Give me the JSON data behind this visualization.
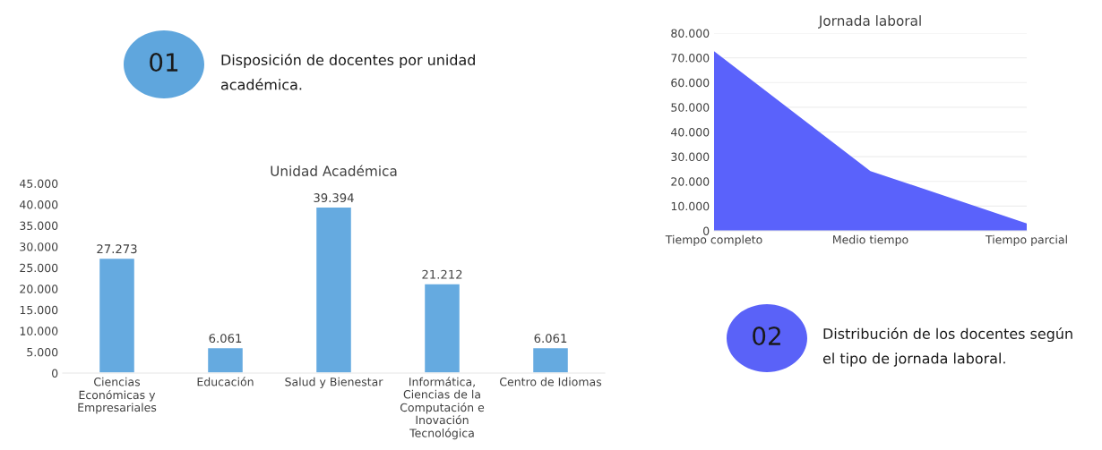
{
  "chart_data": [
    {
      "type": "bar",
      "title": "Unidad Académica",
      "categories": [
        "Ciencias Económicas y Empresariales",
        "Educación",
        "Salud y Bienestar",
        "Informática, Ciencias de la Computación e Inovación Tecnológica",
        "Centro de Idiomas"
      ],
      "values": [
        27273,
        6061,
        39394,
        21212,
        6061
      ],
      "value_labels": [
        "27.273",
        "6.061",
        "39.394",
        "21.212",
        "6.061"
      ],
      "color": "#65aae0",
      "ylim": [
        0,
        45000
      ],
      "yticks": [
        0,
        {
          "value": 5000,
          "label": "5.000"
        },
        {
          "value": 10000,
          "label": "10.000"
        },
        {
          "value": 15000,
          "label": "15.000"
        },
        {
          "value": 20000,
          "label": "20.000"
        },
        {
          "value": 25000,
          "label": "25.000"
        },
        {
          "value": 30000,
          "label": "30.000"
        },
        {
          "value": 35000,
          "label": "35.000"
        },
        {
          "value": 40000,
          "label": "40.000"
        },
        {
          "value": 45000,
          "label": "45.000"
        }
      ],
      "grid": false,
      "annotations": [
        "01",
        "Disposición de docentes por unidad académica."
      ]
    },
    {
      "type": "area",
      "title": "Jornada laboral",
      "categories": [
        "Tiempo completo",
        "Medio tiempo",
        "Tiempo parcial"
      ],
      "values": [
        72700,
        24200,
        3000
      ],
      "color": "#5a62fb",
      "ylim": [
        0,
        80000
      ],
      "yticks": [
        0,
        {
          "value": 10000,
          "label": "10.000"
        },
        {
          "value": 20000,
          "label": "20.000"
        },
        {
          "value": 30000,
          "label": "30.000"
        },
        {
          "value": 40000,
          "label": "40.000"
        },
        {
          "value": 50000,
          "label": "50.000"
        },
        {
          "value": 60000,
          "label": "60.000"
        },
        {
          "value": 70000,
          "label": "70.000"
        },
        {
          "value": 80000,
          "label": "80.000"
        }
      ],
      "grid": "y",
      "annotations": [
        "02",
        "Distribución de los docentes según el tipo de jornada laboral."
      ]
    }
  ]
}
